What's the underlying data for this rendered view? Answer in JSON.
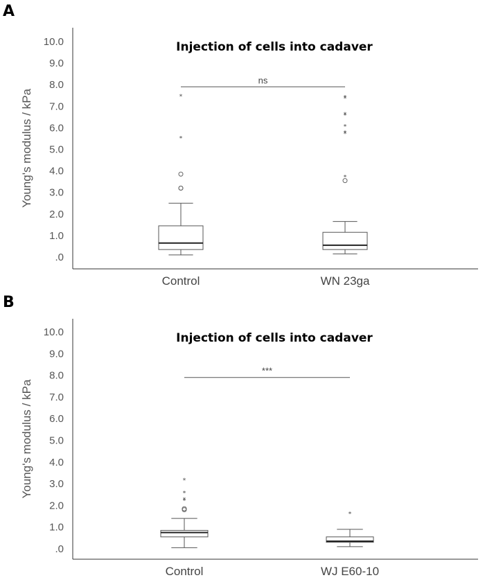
{
  "chart_data": [
    {
      "panel": "A",
      "type": "box",
      "title": "Injection of cells into cadaver",
      "ylabel": "Young's modulus / kPa",
      "ylim": [
        -0.2,
        10.5
      ],
      "yticks": [
        ".0",
        "1.0",
        "2.0",
        "3.0",
        "4.0",
        "5.0",
        "6.0",
        "7.0",
        "8.0",
        "9.0",
        "10.0"
      ],
      "categories": [
        "Control",
        "WN 23ga"
      ],
      "boxes": [
        {
          "category": "Control",
          "whisker_low": 0.1,
          "q1": 0.35,
          "median": 0.65,
          "q3": 1.45,
          "whisker_high": 2.5,
          "outliers_circle": [
            3.2,
            3.2,
            3.85
          ],
          "outliers_star": [
            5.55,
            7.5
          ]
        },
        {
          "category": "WN 23ga",
          "whisker_low": 0.15,
          "q1": 0.35,
          "median": 0.55,
          "q3": 1.15,
          "whisker_high": 1.65,
          "outliers_circle": [
            3.55
          ],
          "outliers_star": [
            3.75,
            5.75,
            5.8,
            6.1,
            6.6,
            6.65,
            7.4,
            7.45
          ]
        }
      ],
      "significance": {
        "label": "ns",
        "y": 7.9
      }
    },
    {
      "panel": "B",
      "type": "box",
      "title": "Injection of cells into cadaver",
      "ylabel": "Young's modulus / kPa",
      "ylim": [
        -0.2,
        10.5
      ],
      "yticks": [
        ".0",
        "1.0",
        "2.0",
        "3.0",
        "4.0",
        "5.0",
        "6.0",
        "7.0",
        "8.0",
        "9.0",
        "10.0"
      ],
      "categories": [
        "Control",
        "WJ E60-10"
      ],
      "boxes": [
        {
          "category": "Control",
          "whisker_low": 0.05,
          "q1": 0.55,
          "median": 0.75,
          "q3": 0.85,
          "whisker_high": 1.4,
          "outliers_circle": [
            1.8,
            1.85
          ],
          "outliers_star": [
            2.25,
            2.3,
            2.6,
            3.2
          ]
        },
        {
          "category": "WJ E60-10",
          "whisker_low": 0.1,
          "q1": 0.3,
          "median": 0.35,
          "q3": 0.55,
          "whisker_high": 0.9,
          "outliers_circle": [],
          "outliers_star": [
            1.65
          ]
        }
      ],
      "significance": {
        "label": "***",
        "y": 7.9
      }
    }
  ]
}
